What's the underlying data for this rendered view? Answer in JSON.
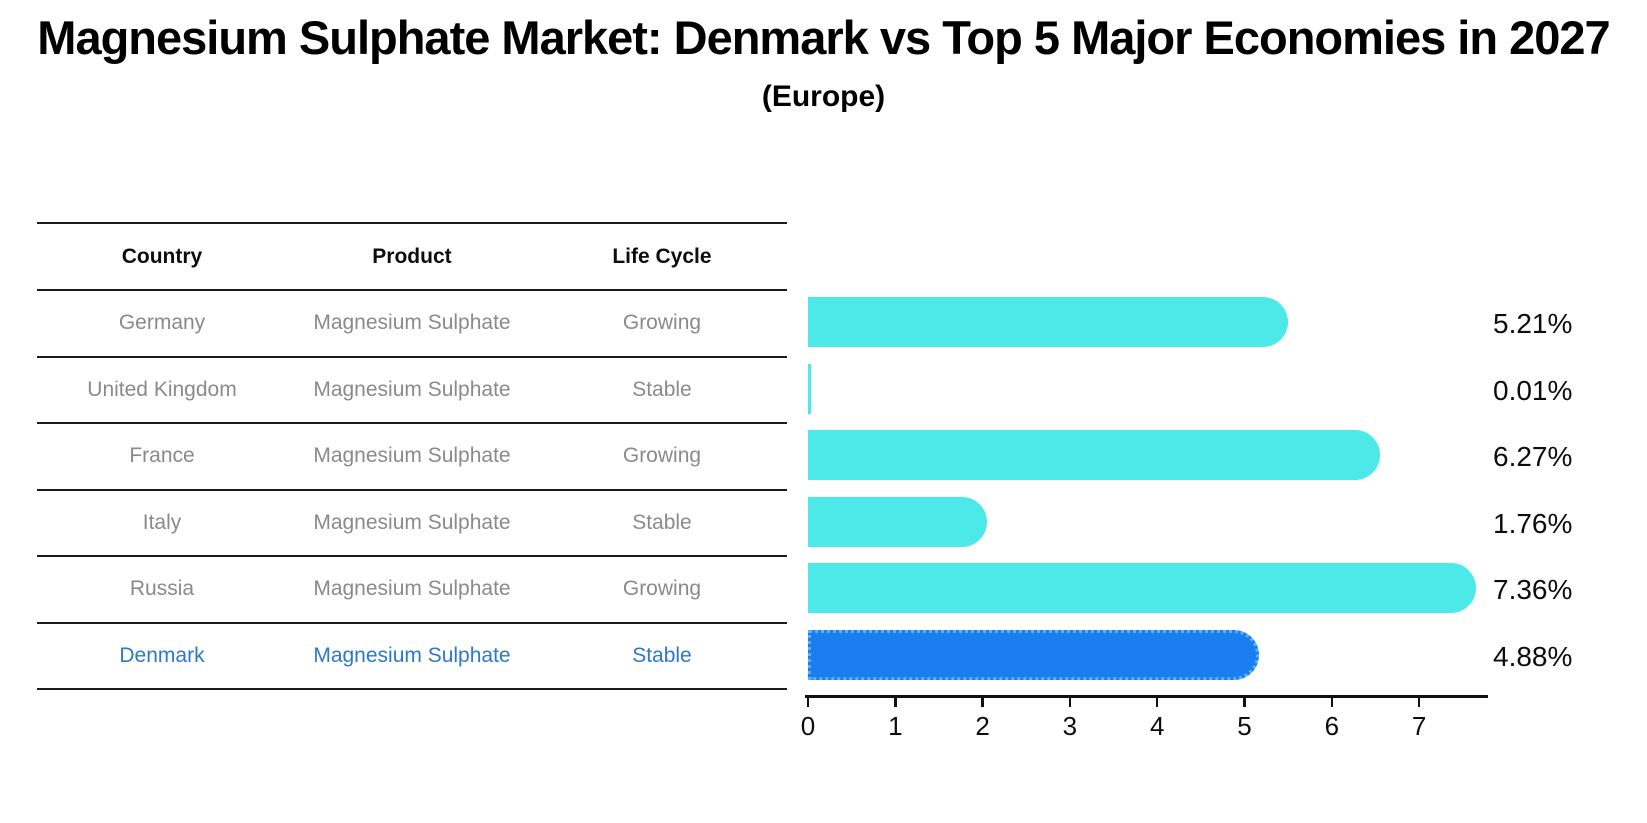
{
  "title": "Magnesium Sulphate Market: Denmark vs Top 5 Major Economies in 2027",
  "subtitle": "(Europe)",
  "table": {
    "headers": [
      "Country",
      "Product",
      "Life Cycle"
    ],
    "rows": [
      {
        "country": "Germany",
        "product": "Magnesium Sulphate",
        "life_cycle": "Growing"
      },
      {
        "country": "United Kingdom",
        "product": "Magnesium Sulphate",
        "life_cycle": "Stable"
      },
      {
        "country": "France",
        "product": "Magnesium Sulphate",
        "life_cycle": "Growing"
      },
      {
        "country": "Italy",
        "product": "Magnesium Sulphate",
        "life_cycle": "Stable"
      },
      {
        "country": "Russia",
        "product": "Magnesium Sulphate",
        "life_cycle": "Growing"
      },
      {
        "country": "Denmark",
        "product": "Magnesium Sulphate",
        "life_cycle": "Stable"
      }
    ],
    "highlighted_row": "Denmark"
  },
  "chart_data": {
    "type": "bar",
    "orientation": "horizontal",
    "title": "Magnesium Sulphate Market: Denmark vs Top 5 Major Economies in 2027",
    "subtitle": "(Europe)",
    "categories": [
      "Germany",
      "United Kingdom",
      "France",
      "Italy",
      "Russia",
      "Denmark"
    ],
    "values": [
      5.21,
      0.01,
      6.27,
      1.76,
      7.36,
      4.88
    ],
    "value_labels": [
      "5.21%",
      "0.01%",
      "6.27%",
      "1.76%",
      "7.36%",
      "4.88%"
    ],
    "unit": "%",
    "xticks": [
      "0",
      "1",
      "2",
      "3",
      "4",
      "5",
      "6",
      "7"
    ],
    "xlim": [
      0,
      7.75
    ],
    "grid": false,
    "legend": false,
    "highlight_index": 5,
    "highlight_category": "Denmark",
    "colors": {
      "bar": "#4DE9E9",
      "highlight_bar": "#1A7DF0",
      "highlight_border": "#5FB2F7",
      "row_text": "#8a8a8a",
      "highlight_text": "#2E78C8",
      "axis": "#111111"
    }
  }
}
